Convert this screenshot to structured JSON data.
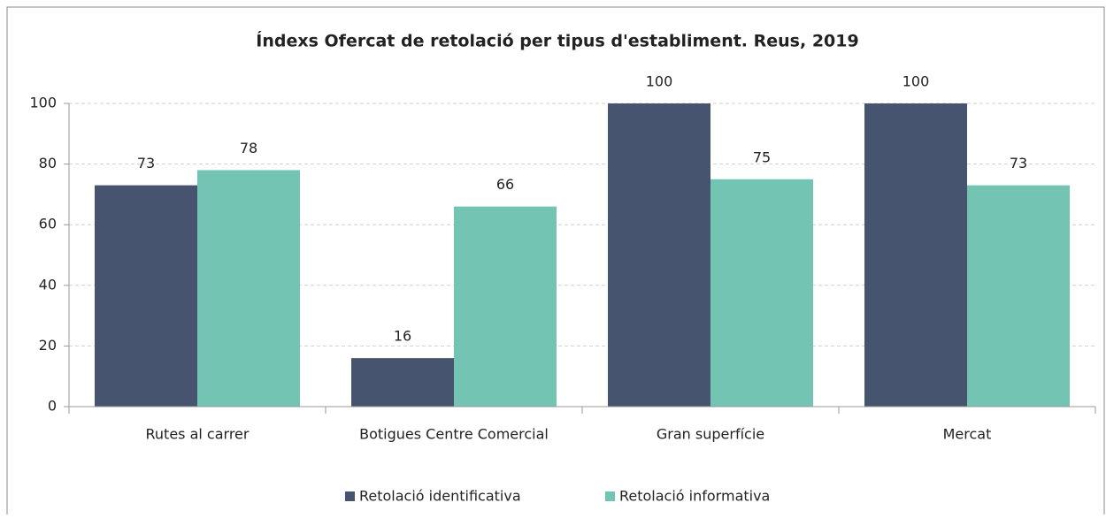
{
  "chart_data": {
    "type": "bar",
    "title": "Índexs Ofercat de retolació per tipus d'establiment. Reus, 2019",
    "categories": [
      "Rutes al carrer",
      "Botigues Centre Comercial",
      "Gran superfície",
      "Mercat"
    ],
    "series": [
      {
        "name": "Retolació identificativa",
        "color": "#465470",
        "values": [
          73,
          16,
          100,
          100
        ]
      },
      {
        "name": "Retolació informativa",
        "color": "#74c4b4",
        "values": [
          78,
          66,
          75,
          73
        ]
      }
    ],
    "ylim": [
      0,
      100
    ],
    "yticks": [
      0,
      20,
      40,
      60,
      80,
      100
    ],
    "grid": true,
    "legend": "bottom"
  }
}
